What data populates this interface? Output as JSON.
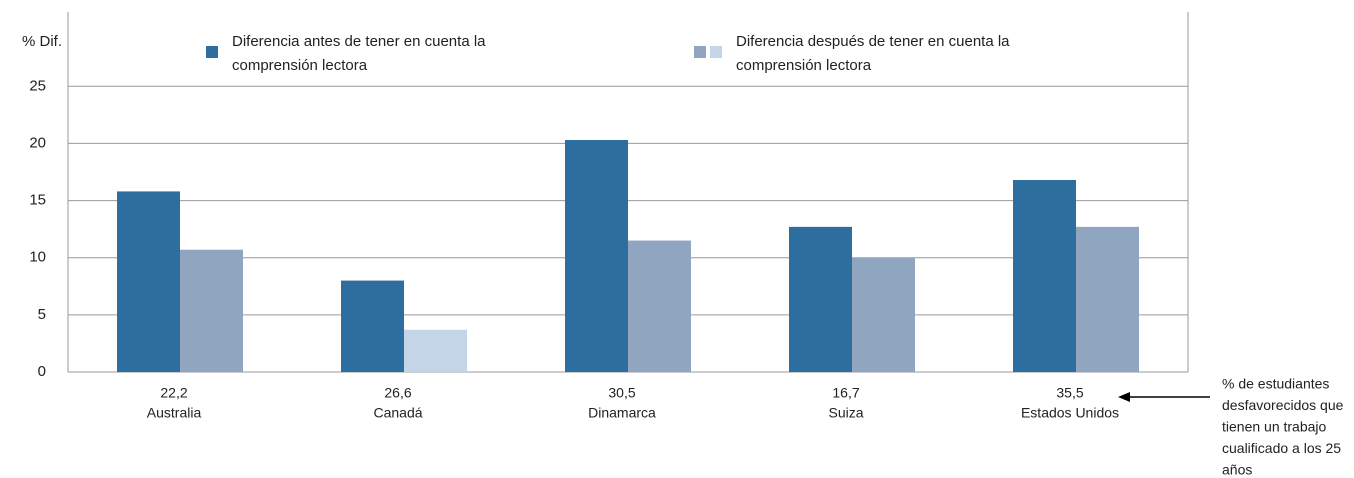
{
  "chart_data": {
    "type": "bar",
    "y_label": "% Dif.",
    "categories": [
      "Australia",
      "Canadá",
      "Dinamarca",
      "Suiza",
      "Estados Unidos"
    ],
    "secondary_values": [
      22.2,
      26.6,
      30.5,
      16.7,
      35.5
    ],
    "secondary_value_labels": [
      "22,2",
      "26,6",
      "30,5",
      "16,7",
      "35,5"
    ],
    "series": [
      {
        "name": [
          "Diferencia antes de tener en cuenta la",
          "comprensión lectora"
        ],
        "color": "#2e6e9e",
        "values": [
          15.8,
          8,
          20.3,
          12.7,
          16.8
        ]
      },
      {
        "name": [
          "Diferencia después de tener en cuenta la",
          "comprensión lectora"
        ],
        "color": "#8fa5c0",
        "point_colors": [
          "#8fa5c0",
          "#c5d5e8",
          "#8fa5c0",
          "#8fa5c0",
          "#8fa5c0"
        ],
        "values": [
          10.7,
          3.7,
          11.5,
          10,
          12.7
        ]
      }
    ],
    "annotation": [
      "% de estudiantes",
      "desfavorecidos que",
      "tienen un trabajo",
      "cualificado a los 25",
      "años"
    ],
    "ylim": [
      0,
      31.5
    ],
    "yticks": [
      0,
      5,
      10,
      15,
      20,
      25
    ],
    "grid": true
  }
}
